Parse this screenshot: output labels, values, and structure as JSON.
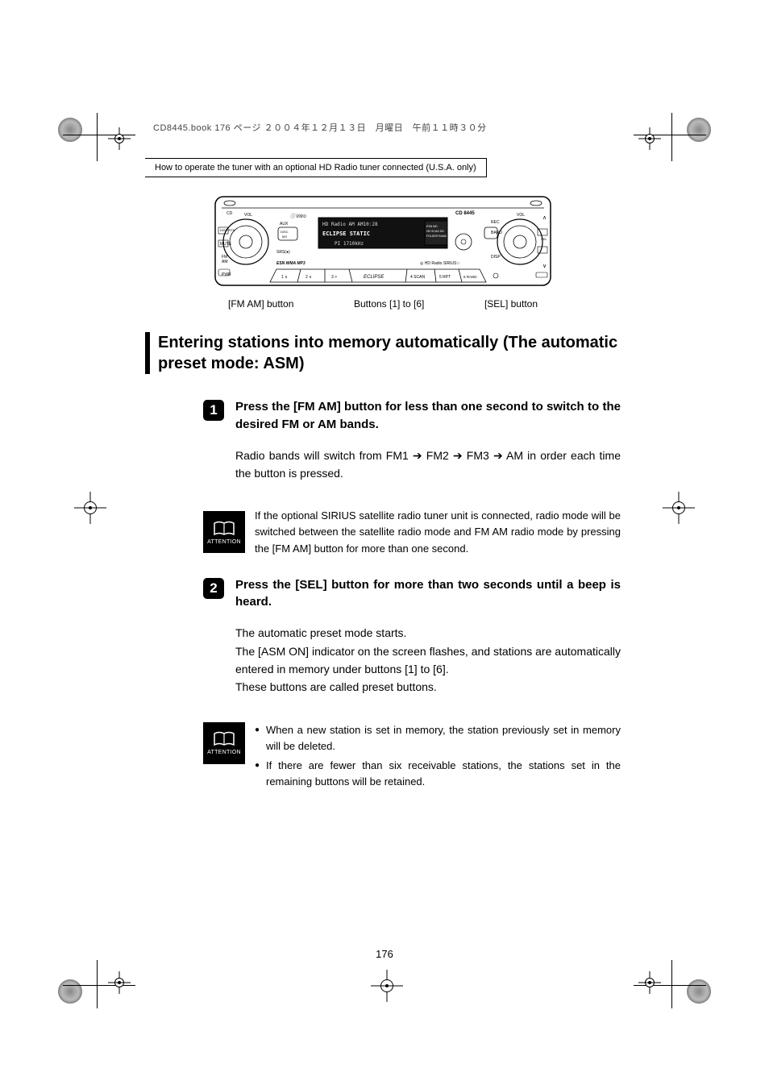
{
  "header": {
    "book_info": "CD8445.book  176 ページ  ２００４年１２月１３日　月曜日　午前１１時３０分",
    "section_title": "How to operate the tuner with an optional HD Radio tuner connected (U.S.A. only)"
  },
  "figure": {
    "device_model": "CD 8445",
    "display_line1": "HD Radio AM   AM10:28",
    "display_line2": "ECLIPSE  STATIC",
    "display_line3": "PI 1710kHz",
    "left_labels": [
      "CD",
      "VOL",
      "DISP RTN",
      "MUTE",
      "FM AM",
      "PWR"
    ],
    "right_labels": [
      "VOL",
      "REC",
      "BAND",
      "DISP"
    ],
    "small_labels": [
      "AUX",
      "DISC MS",
      "SRS",
      "ESN WMA MP3",
      "HD Radio",
      "SIRIUS"
    ],
    "buttons_row": [
      "1 ∨",
      "2 ∧",
      "3 >",
      "ECLIPSE",
      "4 SCAN",
      "5 RPT",
      "6 RAND"
    ],
    "callouts": {
      "left": "[FM  AM] button",
      "center": "Buttons [1] to [6]",
      "right": "[SEL] button"
    }
  },
  "main_heading": "Entering stations into memory automatically (The automatic preset mode: ASM)",
  "steps": [
    {
      "num": "1",
      "title": "Press the [FM AM] button for less than one second to switch to the desired FM or AM bands.",
      "text": "Radio bands will switch from FM1 ➔ FM2 ➔ FM3 ➔ AM in order each time the button is pressed.",
      "attention": {
        "label": "ATTENTION",
        "text": "If the optional SIRIUS satellite radio tuner unit is connected, radio mode will be switched between the satellite radio mode and FM AM radio mode by pressing the [FM AM] button for more than one second."
      }
    },
    {
      "num": "2",
      "title": "Press the [SEL] button for more than two seconds until a beep is heard.",
      "text": "The automatic preset mode starts.\nThe [ASM ON] indicator on the screen flashes, and stations are automatically entered in memory under buttons [1] to [6].\nThese buttons are called preset buttons.",
      "attention": {
        "label": "ATTENTION",
        "bullets": [
          "When a new station is set in memory, the station previously set in memory will be deleted.",
          "If there are fewer than six receivable stations, the stations set in the remaining buttons will be retained."
        ]
      }
    }
  ],
  "page_number": "176"
}
